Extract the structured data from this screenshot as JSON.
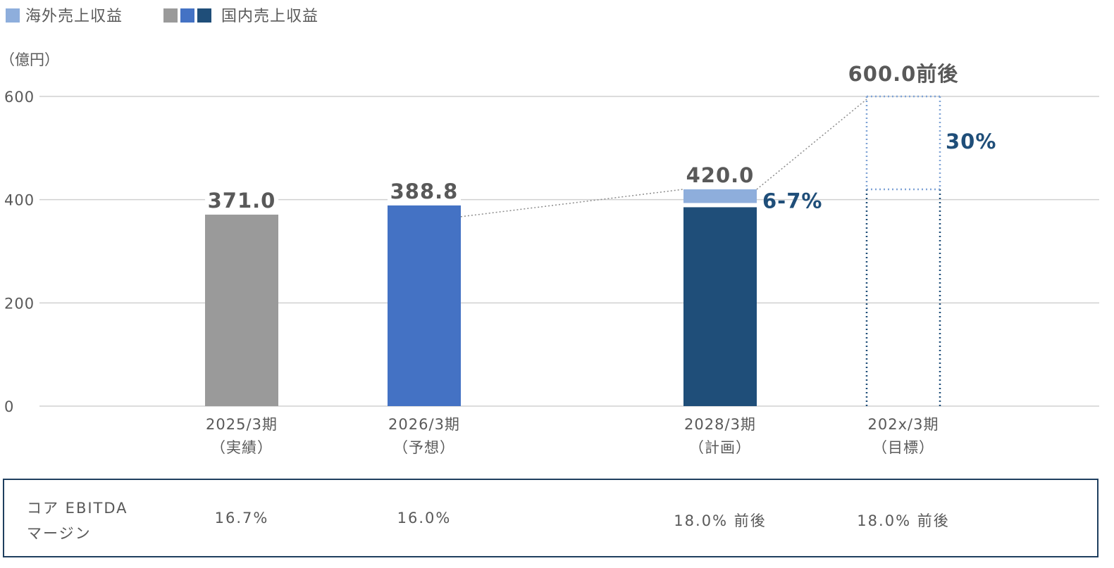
{
  "legend": [
    {
      "label": "海外売上収益",
      "colors": [
        "#8EAEDC"
      ]
    },
    {
      "label": "国内売上収益",
      "colors": [
        "#9A9A9A",
        "#4472C4",
        "#1F4E79"
      ]
    }
  ],
  "colors": {
    "actual": "#9A9A9A",
    "forecast": "#4472C4",
    "plan_domestic": "#1F4E79",
    "overseas": "#8EAEDC",
    "target_dotted_domestic": "#1F4E79",
    "target_dotted_overseas": "#7FA3D6",
    "grid": "#D0D0D0",
    "share_text": "#1F4E79"
  },
  "chart_data": {
    "type": "bar",
    "ylabel": "（億円）",
    "ylim": [
      0,
      600
    ],
    "yticks": [
      "0",
      "200",
      "400",
      "600"
    ],
    "grid": true,
    "legend_position": "top-left",
    "categories": [
      {
        "line1": "2025/3期",
        "line2": "（実績）"
      },
      {
        "line1": "2026/3期",
        "line2": "（予想）"
      },
      {
        "line1": "2028/3期",
        "line2": "（計画）"
      },
      {
        "line1": "202x/3期",
        "line2": "（目標）"
      }
    ],
    "series": [
      {
        "name": "国内売上収益",
        "values": [
          371.0,
          388.8,
          389.4,
          420.0
        ]
      },
      {
        "name": "海外売上収益",
        "values": [
          0,
          0,
          30.6,
          180.0
        ]
      }
    ],
    "totals": [
      "371.0",
      "388.8",
      "420.0",
      "600.0前後"
    ],
    "overseas_share_labels": [
      "",
      "",
      "6-7%",
      "30%"
    ],
    "target_dotted": [
      false,
      false,
      false,
      true
    ]
  },
  "margin_table": {
    "label_line1": "コア EBITDA",
    "label_line2": "マージン",
    "values": [
      "16.7%",
      "16.0%",
      "18.0% 前後",
      "18.0% 前後"
    ]
  }
}
